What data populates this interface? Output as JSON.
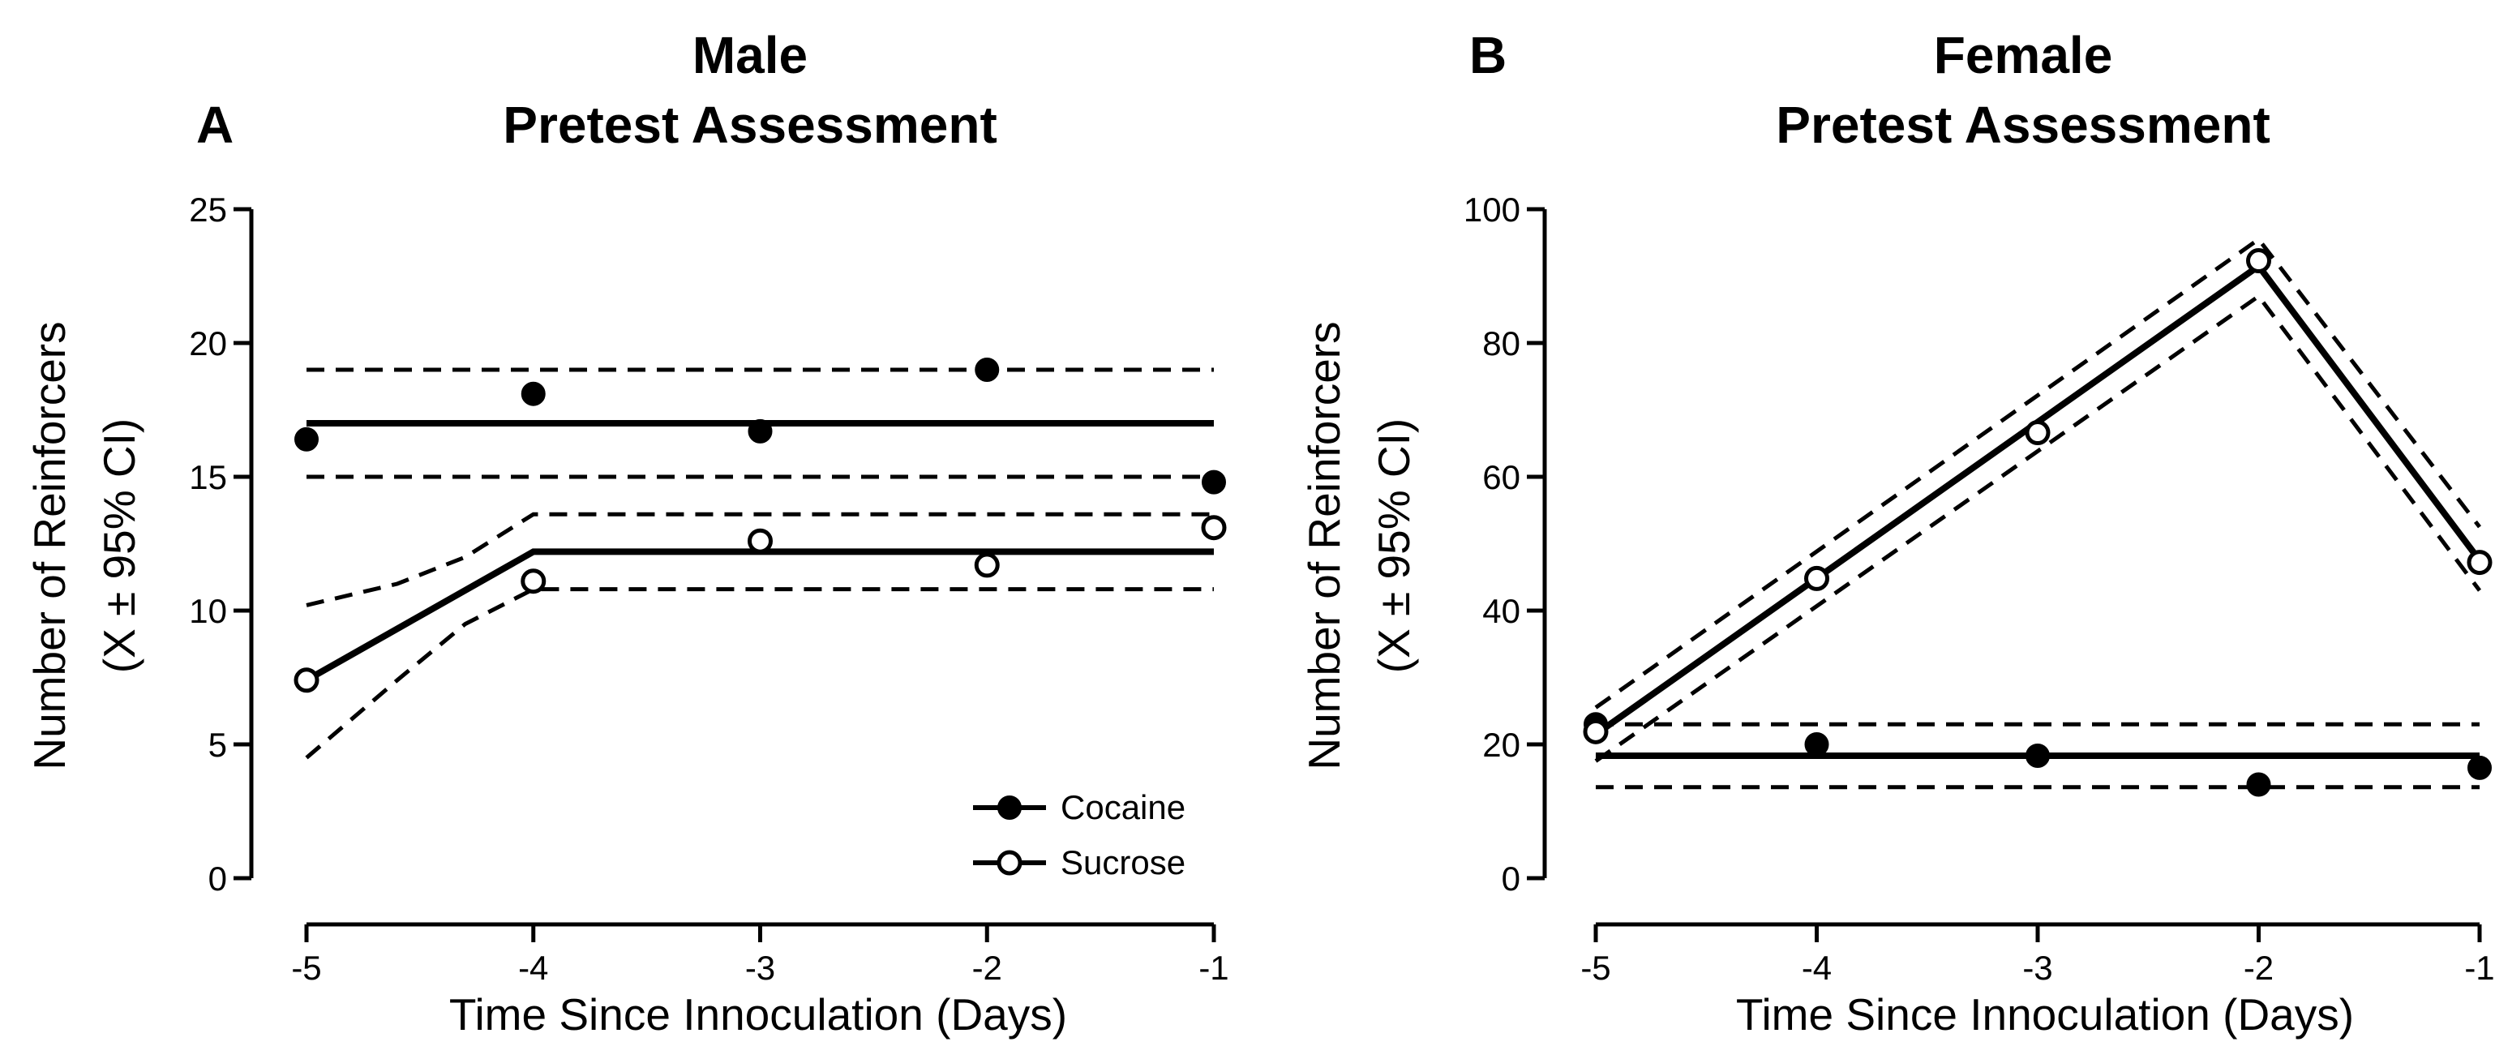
{
  "chart_data": [
    {
      "type": "line",
      "panel_letter": "A",
      "title_line1": "Male",
      "title_line2": "Pretest Assessment",
      "xlabel": "Time Since Innoculation (Days)",
      "ylabel_line1": "Number of  Reinforcers",
      "ylabel_line2": "(X ± 95% CI)",
      "xlim": [
        -5,
        -1
      ],
      "ylim": [
        0,
        25
      ],
      "xticks": [
        -5,
        -4,
        -3,
        -2,
        -1
      ],
      "xtick_labels": [
        "-5",
        "-4",
        "-3",
        "-2",
        "-1"
      ],
      "yticks": [
        0,
        5,
        10,
        15,
        20,
        25
      ],
      "ytick_labels": [
        "0",
        "5",
        "10",
        "15",
        "20",
        "25"
      ],
      "grid": false,
      "legend": {
        "placement": "bottom-right",
        "entries": [
          {
            "label": "Cocaine",
            "marker": "filled-circle"
          },
          {
            "label": "Sucrose",
            "marker": "open-circle"
          }
        ]
      },
      "series": [
        {
          "name": "Cocaine",
          "marker": "filled-circle",
          "x": [
            -5,
            -4,
            -3,
            -2,
            -1
          ],
          "points": [
            16.4,
            18.1,
            16.7,
            19.0,
            14.8
          ],
          "fit": {
            "x": [
              -5,
              -1
            ],
            "y": [
              17.0,
              17.0
            ]
          },
          "ci_upper": {
            "x": [
              -5,
              -1
            ],
            "y": [
              19.0,
              19.0
            ]
          },
          "ci_lower": {
            "x": [
              -5,
              -1
            ],
            "y": [
              15.0,
              15.0
            ]
          }
        },
        {
          "name": "Sucrose",
          "marker": "open-circle",
          "x": [
            -5,
            -4,
            -3,
            -2,
            -1
          ],
          "points": [
            7.4,
            11.1,
            12.6,
            11.7,
            13.1
          ],
          "fit": {
            "x": [
              -5,
              -4,
              -1
            ],
            "y": [
              7.4,
              12.2,
              12.2
            ]
          },
          "ci_upper": {
            "x": [
              -5,
              -4.6,
              -4.3,
              -4,
              -1
            ],
            "y": [
              10.2,
              11.0,
              12.0,
              13.6,
              13.6
            ]
          },
          "ci_lower": {
            "x": [
              -5,
              -4.6,
              -4.3,
              -4,
              -1
            ],
            "y": [
              4.5,
              7.4,
              9.5,
              10.8,
              10.8
            ]
          }
        }
      ]
    },
    {
      "type": "line",
      "panel_letter": "B",
      "title_line1": "Female",
      "title_line2": "Pretest Assessment",
      "xlabel": "Time Since Innoculation (Days)",
      "ylabel_line1": "Number of  Reinforcers",
      "ylabel_line2": "(X ± 95% CI)",
      "xlim": [
        -5,
        -1
      ],
      "ylim": [
        0,
        100
      ],
      "xticks": [
        -5,
        -4,
        -3,
        -2,
        -1
      ],
      "xtick_labels": [
        "-5",
        "-4",
        "-3",
        "-2",
        "-1"
      ],
      "yticks": [
        0,
        20,
        40,
        60,
        80,
        100
      ],
      "ytick_labels": [
        "0",
        "20",
        "40",
        "60",
        "80",
        "100"
      ],
      "grid": false,
      "series": [
        {
          "name": "Cocaine",
          "marker": "filled-circle",
          "x": [
            -5,
            -4,
            -3,
            -2,
            -1
          ],
          "points": [
            23.0,
            20.0,
            18.3,
            14.0,
            16.5
          ],
          "fit": {
            "x": [
              -5,
              -1
            ],
            "y": [
              18.3,
              18.3
            ]
          },
          "ci_upper": {
            "x": [
              -5,
              -1
            ],
            "y": [
              23.0,
              23.0
            ]
          },
          "ci_lower": {
            "x": [
              -5,
              -1
            ],
            "y": [
              13.6,
              13.6
            ]
          }
        },
        {
          "name": "Sucrose",
          "marker": "open-circle",
          "x": [
            -5,
            -4,
            -3,
            -2,
            -1
          ],
          "points": [
            21.9,
            44.8,
            66.6,
            92.3,
            47.2
          ],
          "fit": {
            "x": [
              -5,
              -2,
              -1
            ],
            "y": [
              21.5,
              91.5,
              47.5
            ]
          },
          "ci_upper": {
            "x": [
              -5,
              -2,
              -1
            ],
            "y": [
              25.5,
              95.5,
              52.5
            ]
          },
          "ci_lower": {
            "x": [
              -5,
              -2,
              -1
            ],
            "y": [
              17.5,
              87.0,
              43.0
            ]
          }
        }
      ]
    }
  ]
}
